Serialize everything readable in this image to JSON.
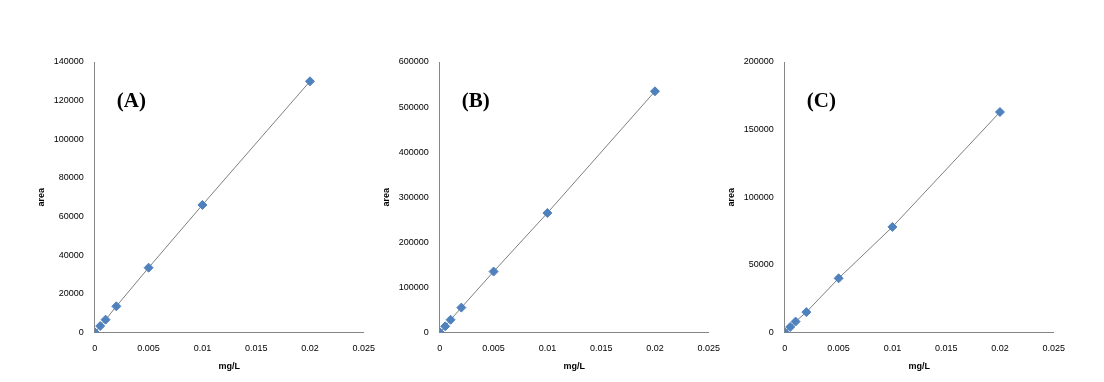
{
  "chart_data": [
    {
      "type": "scatter",
      "annotation": "(A)",
      "xlabel": "mg/L",
      "ylabel": "area",
      "x": [
        0,
        0.0005,
        0.001,
        0.002,
        0.005,
        0.01,
        0.02
      ],
      "values": [
        0,
        3300,
        6600,
        13500,
        33500,
        66000,
        130000
      ],
      "xlim": [
        0,
        0.025
      ],
      "xticks": [
        0,
        0.005,
        0.01,
        0.015,
        0.02,
        0.025
      ],
      "ylim": [
        0,
        140000
      ],
      "yticks": [
        0,
        20000,
        40000,
        60000,
        80000,
        100000,
        120000,
        140000
      ],
      "color": "#4f81bd",
      "marker": "diamond",
      "line_style": "solid",
      "grid": false
    },
    {
      "type": "scatter",
      "annotation": "(B)",
      "xlabel": "mg/L",
      "ylabel": "area",
      "x": [
        0,
        0.0005,
        0.001,
        0.002,
        0.005,
        0.01,
        0.02
      ],
      "values": [
        0,
        13500,
        28000,
        55000,
        135000,
        265000,
        535000
      ],
      "xlim": [
        0,
        0.025
      ],
      "xticks": [
        0,
        0.005,
        0.01,
        0.015,
        0.02,
        0.025
      ],
      "ylim": [
        0,
        600000
      ],
      "yticks": [
        0,
        100000,
        200000,
        300000,
        400000,
        500000,
        600000
      ],
      "color": "#4f81bd",
      "marker": "diamond",
      "line_style": "solid",
      "grid": false
    },
    {
      "type": "scatter",
      "annotation": "(C)",
      "xlabel": "mg/L",
      "ylabel": "area",
      "x": [
        0,
        0.0005,
        0.001,
        0.002,
        0.005,
        0.01,
        0.02
      ],
      "values": [
        0,
        4000,
        8000,
        15000,
        40000,
        78000,
        163000
      ],
      "xlim": [
        0,
        0.025
      ],
      "xticks": [
        0,
        0.005,
        0.01,
        0.015,
        0.02,
        0.025
      ],
      "ylim": [
        0,
        200000
      ],
      "yticks": [
        0,
        50000,
        100000,
        150000,
        200000
      ],
      "color": "#4f81bd",
      "marker": "diamond",
      "line_style": "solid",
      "grid": false
    }
  ]
}
